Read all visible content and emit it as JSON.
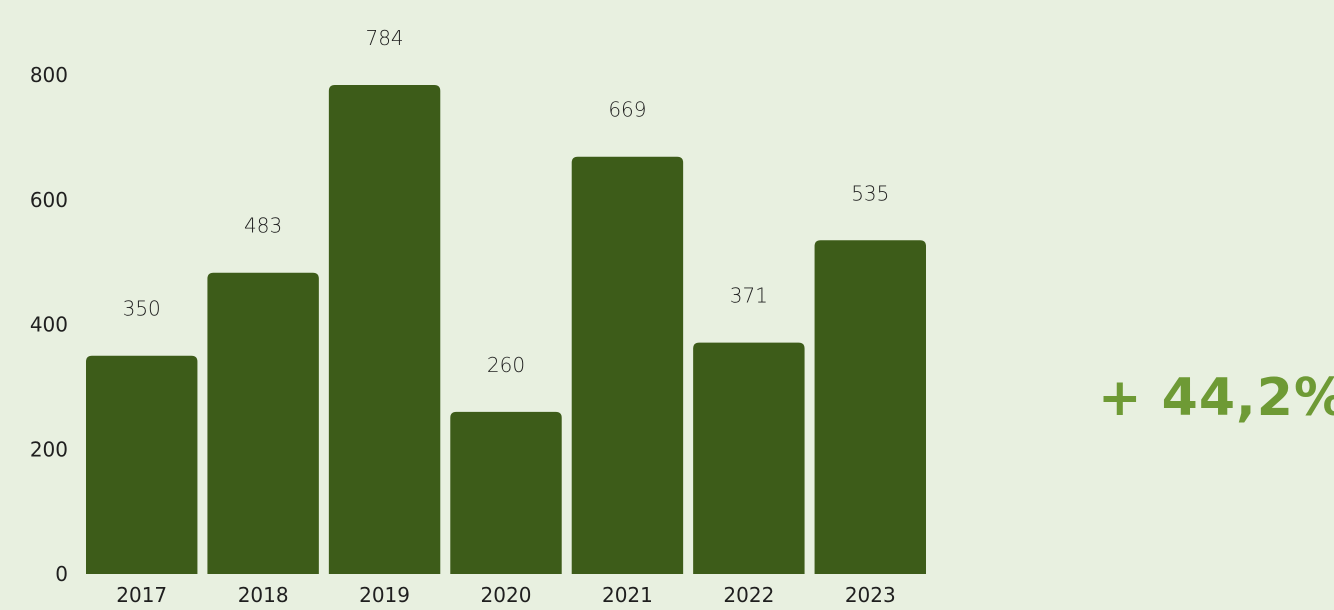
{
  "colors": {
    "background": "#e8f0e0",
    "bar": "#3d5c19",
    "callout": "#6e9a35",
    "text": "#1f1f1f"
  },
  "callout": {
    "text": "+ 44,2%"
  },
  "chart_data": {
    "type": "bar",
    "categories": [
      "2017",
      "2018",
      "2019",
      "2020",
      "2021",
      "2022",
      "2023"
    ],
    "values": [
      350,
      483,
      784,
      260,
      669,
      371,
      535
    ],
    "ylim": [
      0,
      800
    ],
    "yticks": [
      0,
      200,
      400,
      600,
      800
    ],
    "grid": false,
    "data_labels": true,
    "title": "",
    "xlabel": "",
    "ylabel": ""
  }
}
